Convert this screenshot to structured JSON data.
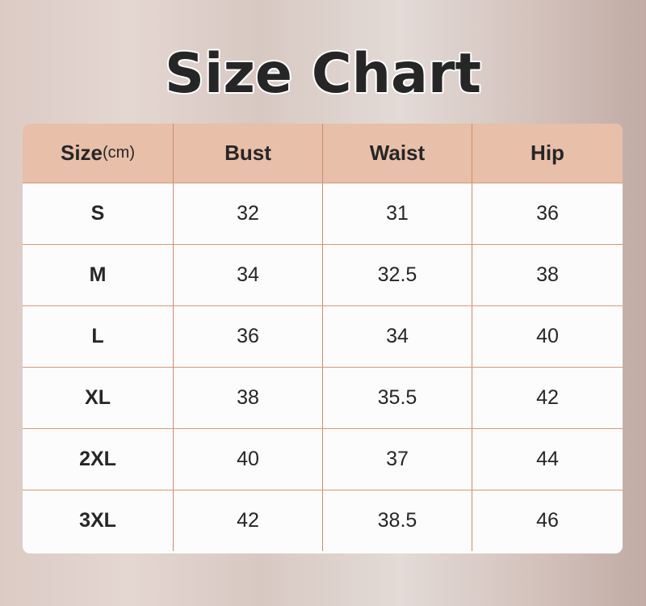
{
  "title": "Size Chart",
  "headers": {
    "size": "Size",
    "unit": "(cm)",
    "bust": "Bust",
    "waist": "Waist",
    "hip": "Hip"
  },
  "rows": [
    {
      "size": "S",
      "bust": "32",
      "waist": "31",
      "hip": "36"
    },
    {
      "size": "M",
      "bust": "34",
      "waist": "32.5",
      "hip": "38"
    },
    {
      "size": "L",
      "bust": "36",
      "waist": "34",
      "hip": "40"
    },
    {
      "size": "XL",
      "bust": "38",
      "waist": "35.5",
      "hip": "42"
    },
    {
      "size": "2XL",
      "bust": "40",
      "waist": "37",
      "hip": "44"
    },
    {
      "size": "3XL",
      "bust": "42",
      "waist": "38.5",
      "hip": "46"
    }
  ],
  "colors": {
    "header": "#e8bfa9",
    "grid": "#c98c6c",
    "text": "#262626"
  }
}
